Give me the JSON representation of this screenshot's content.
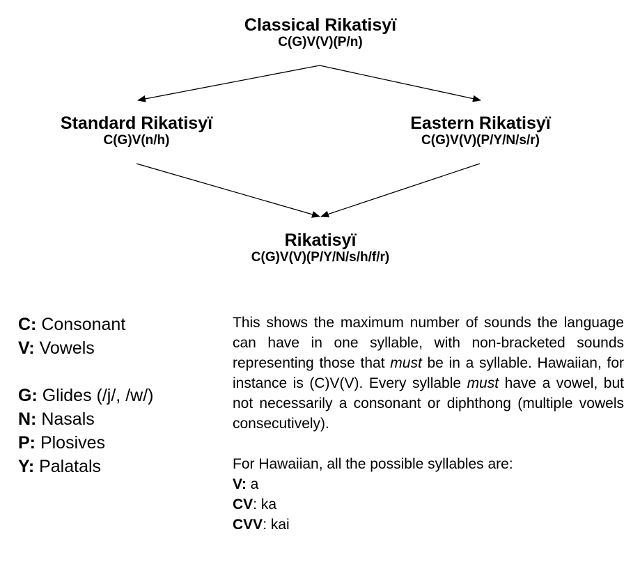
{
  "diagram": {
    "top": {
      "name": "Classical Rikatisyï",
      "pattern": "C(G)V(V)(P/n)"
    },
    "left": {
      "name": "Standard Rikatisyï",
      "pattern": "C(G)V(n/h)"
    },
    "right": {
      "name": "Eastern Rikatisyï",
      "pattern": "C(G)V(V)(P/Y/N/s/r)"
    },
    "bottom": {
      "name": "Rikatisyï",
      "pattern": "C(G)V(V)(P/Y/N/s/h/f/r)"
    }
  },
  "legend": [
    {
      "key": "C:",
      "desc": " Consonant"
    },
    {
      "key": "V:",
      "desc": " Vowels"
    },
    {
      "key": "G:",
      "desc": " Glides (/j/, /w/)"
    },
    {
      "key": "N:",
      "desc": " Nasals"
    },
    {
      "key": "P:",
      "desc": " Plosives"
    },
    {
      "key": "Y:",
      "desc": " Palatals"
    }
  ],
  "explanation": {
    "p1_a": "This shows the maximum number of sounds the language can have in one syllable, with non-bracketed sounds representing those that ",
    "p1_em1": "must",
    "p1_b": " be in a syllable. Hawaiian, for instance is (C)V(V). Every syllable ",
    "p1_em2": "must",
    "p1_c": " have a vowel, but not necessarily a consonant or diphthong (multiple vowels consecutively).",
    "p2": "For Hawaiian, all the possible syllables are:",
    "examples": [
      {
        "key": "V:",
        "value": " a"
      },
      {
        "key": "CV",
        "value": ": ka"
      },
      {
        "key": "CVV",
        "value": ": kai"
      }
    ]
  }
}
